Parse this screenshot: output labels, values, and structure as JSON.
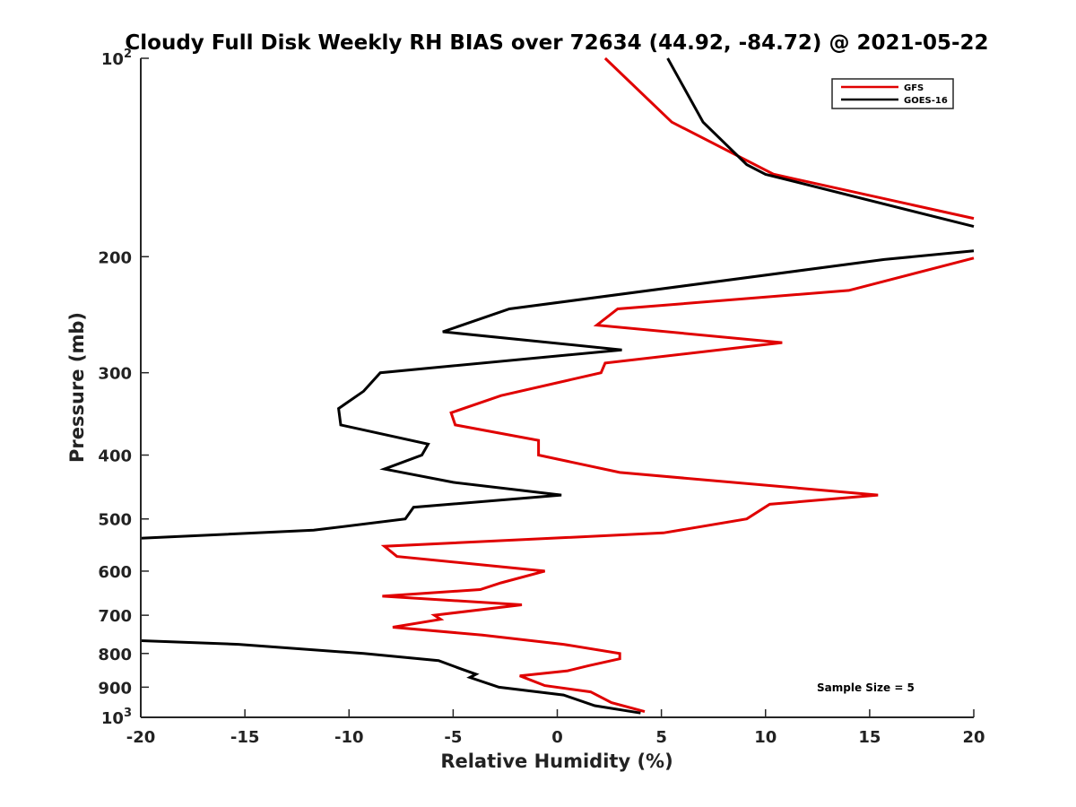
{
  "chart_data": {
    "type": "line",
    "title": "Cloudy Full Disk Weekly RH BIAS over 72634 (44.92, -84.72) @ 2021-05-22",
    "xlabel": "Relative Humidity (%)",
    "ylabel": "Pressure (mb)",
    "xlim": [
      -20,
      20
    ],
    "ylim": [
      100,
      1000
    ],
    "y_scale": "log",
    "y_reversed": true,
    "grid": false,
    "legend_position": "top-right",
    "x_ticks": [
      {
        "value": -20,
        "label": "-20"
      },
      {
        "value": -15,
        "label": "-15"
      },
      {
        "value": -10,
        "label": "-10"
      },
      {
        "value": -5,
        "label": "-5"
      },
      {
        "value": 0,
        "label": "0"
      },
      {
        "value": 5,
        "label": "5"
      },
      {
        "value": 10,
        "label": "10"
      },
      {
        "value": 15,
        "label": "15"
      },
      {
        "value": 20,
        "label": "20"
      }
    ],
    "y_ticks": [
      {
        "value": 200,
        "label": "200"
      },
      {
        "value": 300,
        "label": "300"
      },
      {
        "value": 400,
        "label": "400"
      },
      {
        "value": 500,
        "label": "500"
      },
      {
        "value": 600,
        "label": "600"
      },
      {
        "value": 700,
        "label": "700"
      },
      {
        "value": 800,
        "label": "800"
      },
      {
        "value": 900,
        "label": "900"
      }
    ],
    "y_power_ticks": [
      {
        "value": 100,
        "base": "10",
        "exp": "2"
      },
      {
        "value": 1000,
        "base": "10",
        "exp": "3"
      }
    ],
    "annotation": "Sample Size = 5",
    "series": [
      {
        "name": "GFS",
        "color": "#e00000",
        "points": [
          [
            2.3,
            100
          ],
          [
            5.5,
            125
          ],
          [
            10.4,
            150
          ],
          [
            20,
            175
          ],
          [
            null,
            190
          ],
          [
            20,
            201
          ],
          [
            14,
            225
          ],
          [
            2.9,
            240
          ],
          [
            1.9,
            254
          ],
          [
            10.8,
            270
          ],
          [
            2.3,
            290
          ],
          [
            2.1,
            300
          ],
          [
            -2.7,
            325
          ],
          [
            -5.1,
            345
          ],
          [
            -4.9,
            360
          ],
          [
            -0.9,
            380
          ],
          [
            -0.9,
            400
          ],
          [
            3,
            425
          ],
          [
            15.4,
            460
          ],
          [
            10.2,
            475
          ],
          [
            9.1,
            500
          ],
          [
            5.1,
            525
          ],
          [
            -8.3,
            550
          ],
          [
            -7.7,
            570
          ],
          [
            -0.6,
            600
          ],
          [
            -2.7,
            625
          ],
          [
            -3.7,
            640
          ],
          [
            -8.4,
            655
          ],
          [
            -1.7,
            675
          ],
          [
            -5.9,
            700
          ],
          [
            -5.6,
            710
          ],
          [
            -7.9,
            730
          ],
          [
            -3.6,
            750
          ],
          [
            0.3,
            775
          ],
          [
            3,
            800
          ],
          [
            3,
            815
          ],
          [
            1.5,
            835
          ],
          [
            0.5,
            850
          ],
          [
            -1.8,
            865
          ],
          [
            -0.6,
            895
          ],
          [
            1.6,
            915
          ],
          [
            2.6,
            950
          ],
          [
            4.2,
            980
          ]
        ]
      },
      {
        "name": "GOES-16",
        "color": "#000000",
        "points": [
          [
            5.3,
            100
          ],
          [
            7,
            125
          ],
          [
            9.1,
            145
          ],
          [
            10,
            150
          ],
          [
            20,
            180
          ],
          [
            null,
            190
          ],
          [
            20,
            196
          ],
          [
            15.7,
            202
          ],
          [
            -2.3,
            240
          ],
          [
            -5.5,
            260
          ],
          [
            3.1,
            277
          ],
          [
            -8.5,
            300
          ],
          [
            -9.3,
            320
          ],
          [
            -10.5,
            340
          ],
          [
            -10.4,
            360
          ],
          [
            -6.2,
            385
          ],
          [
            -6.5,
            400
          ],
          [
            -8.3,
            420
          ],
          [
            -5,
            440
          ],
          [
            0.2,
            460
          ],
          [
            -6.9,
            480
          ],
          [
            -7.3,
            500
          ],
          [
            -11.7,
            520
          ],
          [
            -20,
            535
          ],
          [
            null,
            650
          ],
          [
            -20,
            765
          ],
          [
            -15.3,
            775
          ],
          [
            -9.3,
            800
          ],
          [
            -5.7,
            820
          ],
          [
            -4.6,
            845
          ],
          [
            -3.9,
            860
          ],
          [
            -4.2,
            870
          ],
          [
            -2.8,
            900
          ],
          [
            0.3,
            925
          ],
          [
            1.8,
            960
          ],
          [
            4,
            985
          ]
        ]
      }
    ]
  }
}
